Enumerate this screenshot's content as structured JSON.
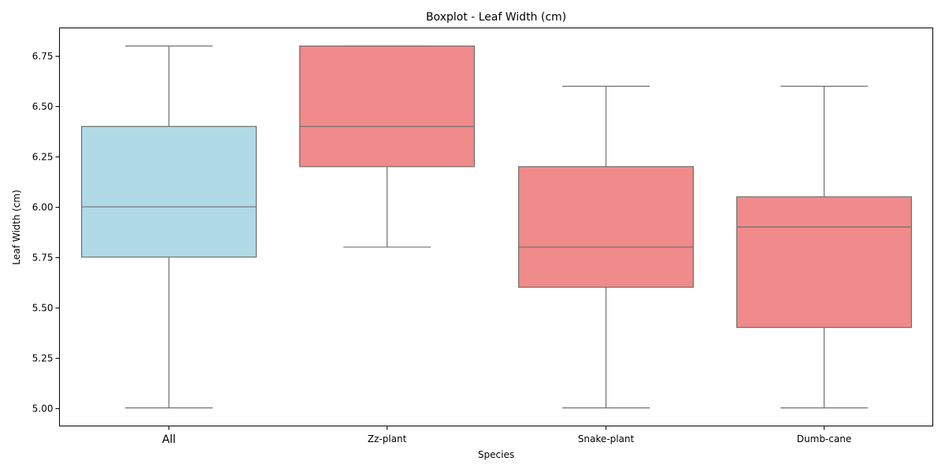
{
  "chart_data": {
    "type": "box",
    "title": "Boxplot - Leaf Width (cm)",
    "xlabel": "Species",
    "ylabel": "Leaf Width (cm)",
    "ylim": [
      4.91,
      6.89
    ],
    "y_ticks": [
      "5.00",
      "5.25",
      "5.50",
      "5.75",
      "6.00",
      "6.25",
      "6.50",
      "6.75"
    ],
    "categories": [
      "All",
      "Zz-plant",
      "Snake-plant",
      "Dumb-cane"
    ],
    "boxes": [
      {
        "category": "All",
        "whisker_low": 5.0,
        "q1": 5.75,
        "median": 6.0,
        "q3": 6.4,
        "whisker_high": 6.8,
        "color": "#add8e6"
      },
      {
        "category": "Zz-plant",
        "whisker_low": 5.8,
        "q1": 6.2,
        "median": 6.4,
        "q3": 6.8,
        "whisker_high": 6.8,
        "color": "#f08080"
      },
      {
        "category": "Snake-plant",
        "whisker_low": 5.0,
        "q1": 5.6,
        "median": 5.8,
        "q3": 6.2,
        "whisker_high": 6.6,
        "color": "#f08080"
      },
      {
        "category": "Dumb-cane",
        "whisker_low": 5.0,
        "q1": 5.4,
        "median": 5.9,
        "q3": 6.05,
        "whisker_high": 6.6,
        "color": "#f08080"
      }
    ],
    "grid": false,
    "line_color": "#707070"
  }
}
